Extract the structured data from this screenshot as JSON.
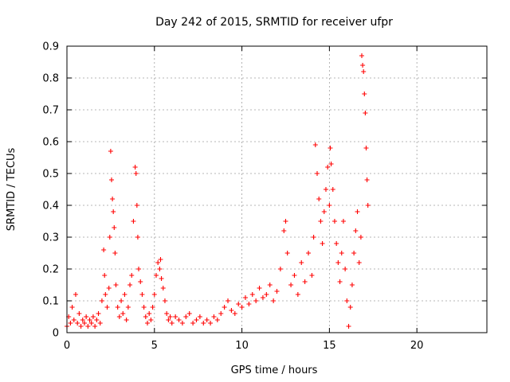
{
  "chart_data": {
    "type": "scatter",
    "title": "Day 242 of 2015, SRMTID for receiver ufpr",
    "xlabel": "GPS time / hours",
    "ylabel": "SRMTID / TECUs",
    "xlim": [
      0,
      24
    ],
    "ylim": [
      0,
      0.9
    ],
    "x_ticks": [
      0,
      5,
      10,
      15,
      20
    ],
    "y_ticks": [
      0,
      0.1,
      0.2,
      0.3,
      0.4,
      0.5,
      0.6,
      0.7,
      0.8,
      0.9
    ],
    "x_tick_labels": [
      "0",
      "5",
      "10",
      "15",
      "20"
    ],
    "y_tick_labels": [
      "0",
      "0.1",
      "0.2",
      "0.3",
      "0.4",
      "0.5",
      "0.6",
      "0.7",
      "0.8",
      "0.9"
    ],
    "grid": true,
    "marker": "+",
    "color": "#ff0000",
    "series": [
      {
        "name": "SRMTID",
        "x": [
          0.0,
          0.1,
          0.2,
          0.3,
          0.4,
          0.5,
          0.6,
          0.7,
          0.8,
          0.9,
          1.0,
          1.1,
          1.2,
          1.3,
          1.4,
          1.5,
          1.6,
          1.7,
          1.8,
          1.9,
          2.0,
          2.1,
          2.15,
          2.2,
          2.3,
          2.4,
          2.45,
          2.5,
          2.55,
          2.6,
          2.65,
          2.7,
          2.75,
          2.8,
          2.9,
          3.0,
          3.1,
          3.2,
          3.3,
          3.4,
          3.5,
          3.6,
          3.7,
          3.8,
          3.9,
          3.95,
          4.0,
          4.05,
          4.1,
          4.2,
          4.3,
          4.4,
          4.5,
          4.6,
          4.7,
          4.8,
          4.9,
          5.0,
          5.1,
          5.2,
          5.3,
          5.35,
          5.4,
          5.5,
          5.6,
          5.7,
          5.8,
          5.9,
          6.0,
          6.2,
          6.4,
          6.6,
          6.8,
          7.0,
          7.2,
          7.4,
          7.6,
          7.8,
          8.0,
          8.2,
          8.4,
          8.6,
          8.8,
          9.0,
          9.2,
          9.4,
          9.6,
          9.8,
          10.0,
          10.2,
          10.4,
          10.6,
          10.8,
          11.0,
          11.2,
          11.4,
          11.6,
          11.8,
          12.0,
          12.2,
          12.4,
          12.5,
          12.6,
          12.8,
          13.0,
          13.2,
          13.4,
          13.6,
          13.8,
          14.0,
          14.1,
          14.2,
          14.3,
          14.4,
          14.5,
          14.6,
          14.7,
          14.8,
          14.9,
          15.0,
          15.05,
          15.1,
          15.2,
          15.3,
          15.4,
          15.5,
          15.6,
          15.7,
          15.8,
          15.9,
          16.0,
          16.1,
          16.2,
          16.3,
          16.4,
          16.5,
          16.6,
          16.7,
          16.8,
          16.85,
          16.9,
          16.95,
          17.0,
          17.05,
          17.1,
          17.15,
          17.2
        ],
        "y": [
          0.02,
          0.05,
          0.03,
          0.08,
          0.04,
          0.12,
          0.03,
          0.06,
          0.02,
          0.04,
          0.03,
          0.05,
          0.02,
          0.04,
          0.03,
          0.05,
          0.02,
          0.04,
          0.06,
          0.03,
          0.1,
          0.26,
          0.18,
          0.12,
          0.08,
          0.14,
          0.3,
          0.57,
          0.48,
          0.42,
          0.38,
          0.33,
          0.25,
          0.15,
          0.08,
          0.05,
          0.1,
          0.06,
          0.12,
          0.04,
          0.08,
          0.15,
          0.18,
          0.35,
          0.52,
          0.5,
          0.4,
          0.3,
          0.2,
          0.16,
          0.12,
          0.08,
          0.05,
          0.03,
          0.06,
          0.04,
          0.08,
          0.12,
          0.18,
          0.22,
          0.2,
          0.23,
          0.17,
          0.14,
          0.1,
          0.06,
          0.04,
          0.05,
          0.03,
          0.05,
          0.04,
          0.03,
          0.05,
          0.06,
          0.03,
          0.04,
          0.05,
          0.03,
          0.04,
          0.03,
          0.05,
          0.04,
          0.06,
          0.08,
          0.1,
          0.07,
          0.06,
          0.09,
          0.08,
          0.11,
          0.09,
          0.12,
          0.1,
          0.14,
          0.11,
          0.12,
          0.15,
          0.1,
          0.13,
          0.2,
          0.32,
          0.35,
          0.25,
          0.15,
          0.18,
          0.12,
          0.22,
          0.16,
          0.25,
          0.18,
          0.3,
          0.59,
          0.5,
          0.42,
          0.35,
          0.28,
          0.38,
          0.45,
          0.52,
          0.4,
          0.58,
          0.53,
          0.45,
          0.35,
          0.28,
          0.22,
          0.16,
          0.25,
          0.35,
          0.2,
          0.1,
          0.02,
          0.08,
          0.15,
          0.25,
          0.32,
          0.38,
          0.22,
          0.3,
          0.87,
          0.84,
          0.82,
          0.75,
          0.69,
          0.58,
          0.48,
          0.4
        ]
      }
    ]
  }
}
